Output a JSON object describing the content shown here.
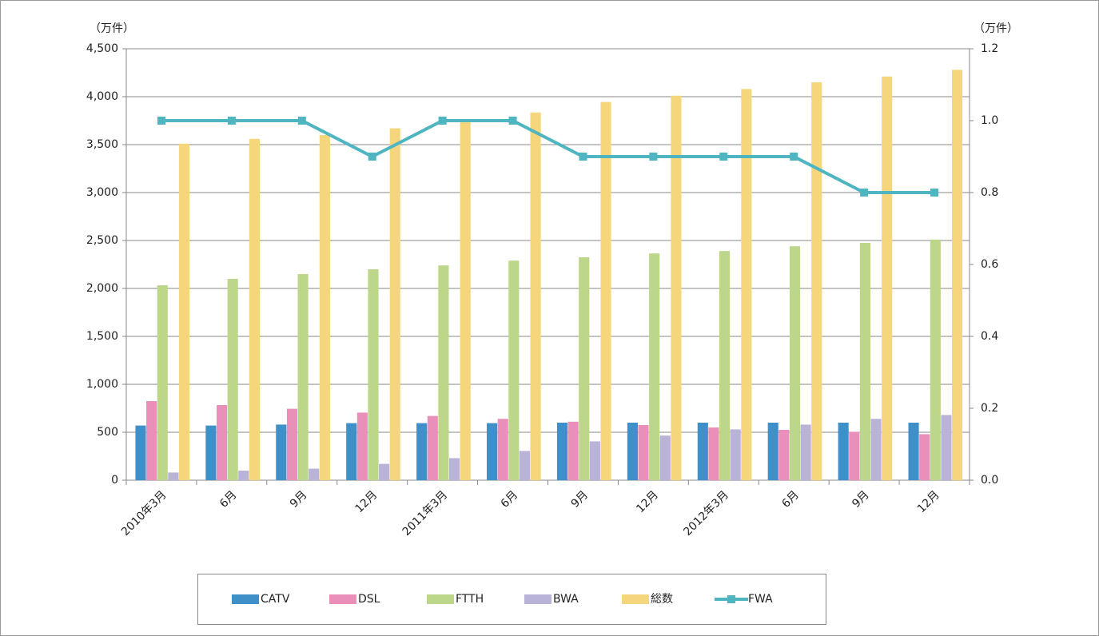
{
  "chart_data": {
    "type": "bar",
    "y_label": "（万件）",
    "y2_label": "（万件）",
    "categories": [
      "2010年3月",
      "6月",
      "9月",
      "12月",
      "2011年3月",
      "6月",
      "9月",
      "12月",
      "2012年3月",
      "6月",
      "9月",
      "12月"
    ],
    "series": [
      {
        "name": "CATV",
        "color": "#3f8fc9",
        "type": "bar",
        "values": [
          570,
          570,
          580,
          595,
          595,
          595,
          600,
          600,
          600,
          600,
          600,
          600
        ]
      },
      {
        "name": "DSL",
        "color": "#e98fba",
        "type": "bar",
        "values": [
          825,
          783,
          745,
          705,
          670,
          640,
          610,
          575,
          550,
          525,
          505,
          480
        ]
      },
      {
        "name": "FTTH",
        "color": "#bcd68a",
        "type": "bar",
        "values": [
          2033,
          2100,
          2150,
          2200,
          2240,
          2290,
          2325,
          2365,
          2390,
          2440,
          2475,
          2510
        ]
      },
      {
        "name": "BWA",
        "color": "#b9b3d9",
        "type": "bar",
        "values": [
          80,
          100,
          120,
          170,
          230,
          305,
          405,
          465,
          530,
          580,
          640,
          680
        ]
      },
      {
        "name": "総数",
        "color": "#f5d67d",
        "type": "bar",
        "values": [
          3510,
          3560,
          3600,
          3670,
          3750,
          3835,
          3945,
          4010,
          4080,
          4150,
          4210,
          4280
        ]
      },
      {
        "name": "FWA",
        "color": "#4fb5c0",
        "type": "line",
        "axis": "y2",
        "values": [
          1.0,
          1.0,
          1.0,
          0.9,
          1.0,
          1.0,
          0.9,
          0.9,
          0.9,
          0.9,
          0.8,
          0.8
        ]
      }
    ],
    "ylim": [
      0,
      4500
    ],
    "yticks": [
      0,
      500,
      {
        "value": 1000,
        "label": "1,000"
      },
      {
        "value": 1500,
        "label": "1,500"
      },
      {
        "value": 2000,
        "label": "2,000"
      },
      {
        "value": 2500,
        "label": "2,500"
      },
      {
        "value": 3000,
        "label": "3,000"
      },
      {
        "value": 3500,
        "label": "3,500"
      },
      {
        "value": 4000,
        "label": "4,000"
      },
      {
        "value": 4500,
        "label": "4,500"
      }
    ],
    "y2lim": [
      0,
      1.2
    ],
    "y2ticks": [
      {
        "value": 0,
        "label": "0.0"
      },
      0.2,
      0.4,
      0.6,
      0.8,
      {
        "value": 1,
        "label": "1.0"
      },
      1.2
    ],
    "grid": true,
    "legend": "bottom"
  }
}
